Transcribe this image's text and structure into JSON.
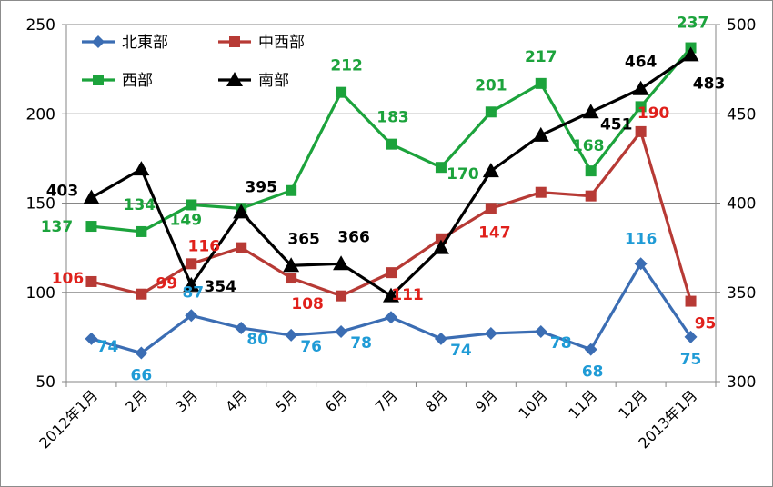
{
  "chart_data": {
    "type": "line",
    "categories": [
      "2012年1月",
      "2月",
      "3月",
      "4月",
      "5月",
      "6月",
      "7月",
      "8月",
      "9月",
      "10月",
      "11月",
      "12月",
      "2013年1月"
    ],
    "ylim_left": [
      50,
      250
    ],
    "yticks_left": [
      "50",
      "100",
      "150",
      "200",
      "250"
    ],
    "ylim_right": [
      300,
      500
    ],
    "yticks_right": [
      "300",
      "350",
      "400",
      "450",
      "500"
    ],
    "grid": true,
    "legend_position": "top-left",
    "series": [
      {
        "name": "北東部",
        "axis": "left",
        "color": "#3b6db3",
        "label_color": "#1f9bd6",
        "marker": "diamond",
        "values": [
          74,
          66,
          87,
          80,
          76,
          78,
          86,
          74,
          77,
          78,
          68,
          116,
          75
        ],
        "labels": [
          "74",
          "66",
          "87",
          "80",
          "76",
          "78",
          "",
          "74",
          "",
          "78",
          "68",
          "116",
          "75"
        ]
      },
      {
        "name": "中西部",
        "axis": "left",
        "color": "#b73a35",
        "label_color": "#e0201b",
        "marker": "square",
        "values": [
          106,
          99,
          116,
          125,
          108,
          98,
          111,
          130,
          147,
          156,
          154,
          190,
          95
        ],
        "labels": [
          "106",
          "99",
          "116",
          "",
          "108",
          "",
          "111",
          "",
          "147",
          "",
          "",
          "190",
          "95"
        ]
      },
      {
        "name": "西部",
        "axis": "left",
        "color": "#1ca33c",
        "label_color": "#1ca33c",
        "marker": "square",
        "values": [
          137,
          134,
          149,
          147,
          157,
          212,
          183,
          170,
          201,
          217,
          168,
          204,
          237
        ],
        "labels": [
          "137",
          "134",
          "149",
          "",
          "",
          "212",
          "183",
          "170",
          "201",
          "217",
          "168",
          "",
          "237"
        ]
      },
      {
        "name": "南部",
        "axis": "right",
        "color": "#000000",
        "label_color": "#000000",
        "marker": "triangle",
        "values": [
          403,
          419,
          354,
          395,
          365,
          366,
          348,
          375,
          418,
          438,
          451,
          464,
          483
        ],
        "labels": [
          "403",
          "",
          "354",
          "395",
          "365",
          "366",
          "",
          "",
          "",
          "",
          "451",
          "464",
          "483"
        ]
      }
    ]
  }
}
